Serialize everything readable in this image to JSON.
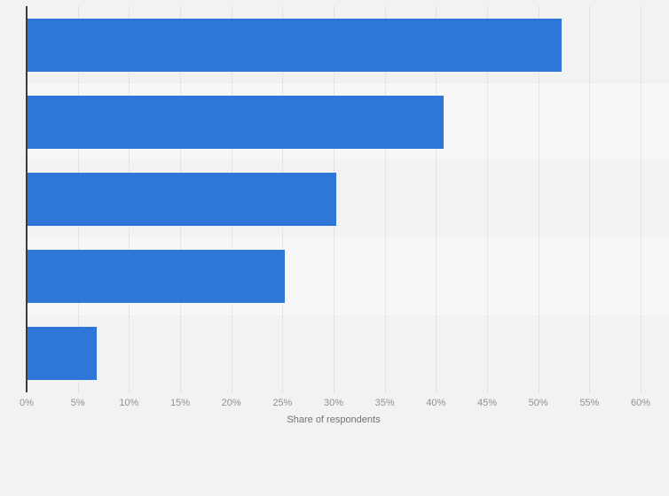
{
  "chart_data": {
    "type": "bar",
    "orientation": "horizontal",
    "title": "",
    "categories": [
      "",
      "",
      "",
      "",
      ""
    ],
    "values": [
      52,
      40.5,
      30,
      25,
      6.6
    ],
    "value_unit": "%",
    "xlabel": "Share of respondents",
    "ylabel": "",
    "xlim": [
      0,
      60
    ],
    "x_tick_step": 5,
    "x_ticks": [
      "0%",
      "5%",
      "10%",
      "15%",
      "20%",
      "25%",
      "30%",
      "35%",
      "40%",
      "45%",
      "50%",
      "55%",
      "60%"
    ],
    "grid": "vertical dotted gridlines",
    "legend": "none",
    "row_striping": "alternate rows shaded, rows 2 and 4 lighter",
    "colors": {
      "bar": "#2e76d8",
      "bar_halo": "rgba(46,118,216,0.32)",
      "axis_line": "#3c3c3c",
      "gridline": "#d4d4d4",
      "tick_label": "#919191",
      "axis_title": "#737373",
      "background": "#f2f2f2",
      "row_stripe_alt": "#f7f7f8"
    }
  }
}
